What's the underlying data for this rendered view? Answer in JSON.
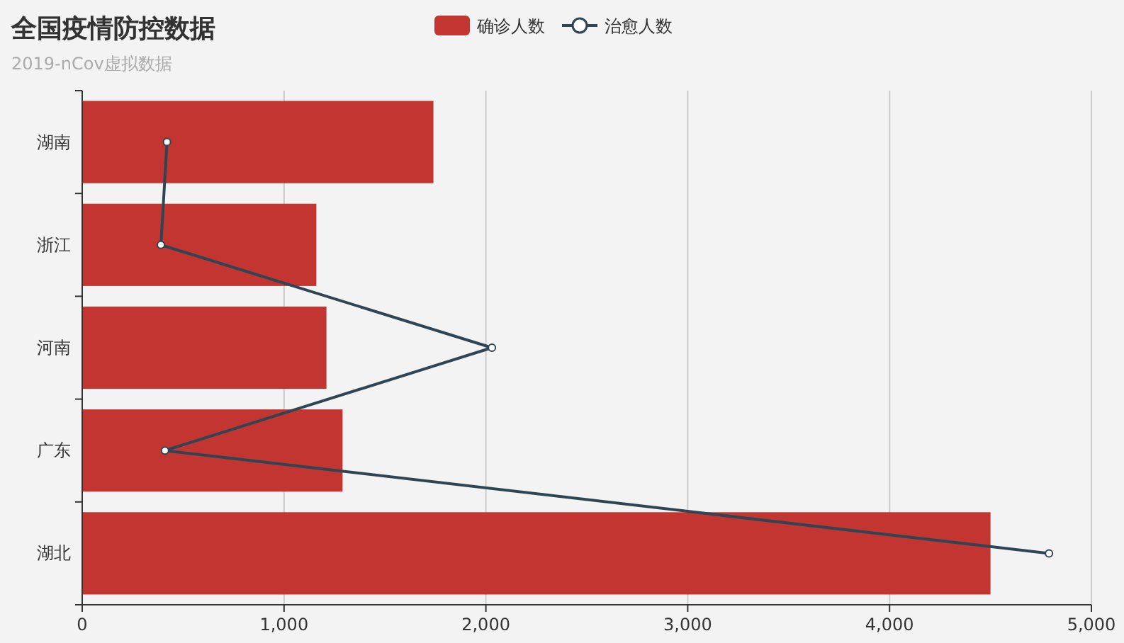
{
  "chart_data": {
    "type": "bar",
    "orientation": "horizontal",
    "title": "全国疫情防控数据",
    "subtitle": "2019-nCov虚拟数据",
    "categories": [
      "湖南",
      "浙江",
      "河南",
      "广东",
      "湖北"
    ],
    "series": [
      {
        "name": "确诊人数",
        "color": "#c23531",
        "values": [
          1740,
          1160,
          1210,
          1290,
          4500
        ]
      },
      {
        "name": "治愈人数",
        "type": "line",
        "color": "#2f4554",
        "marker": "circle",
        "values": [
          420,
          390,
          2030,
          410,
          4790
        ]
      }
    ],
    "xlim": [
      0,
      5000
    ],
    "xticks": [
      {
        "value": 0,
        "label": "0"
      },
      {
        "value": 1000,
        "label": "1,000"
      },
      {
        "value": 2000,
        "label": "2,000"
      },
      {
        "value": 3000,
        "label": "3,000"
      },
      {
        "value": 4000,
        "label": "4,000"
      },
      {
        "value": 5000,
        "label": "5,000"
      }
    ],
    "grid": "x",
    "legend": "top"
  }
}
